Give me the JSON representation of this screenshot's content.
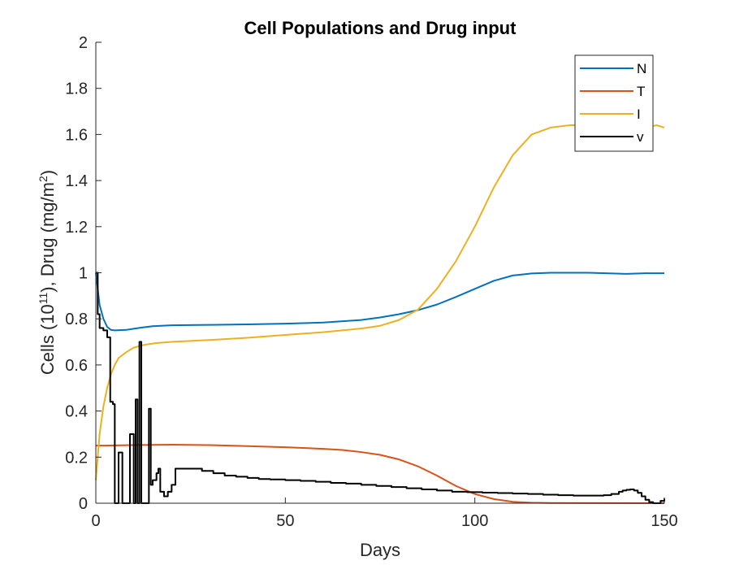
{
  "chart_data": {
    "type": "line",
    "title": "Cell Populations and Drug input",
    "xlabel": "Days",
    "ylabel": {
      "prefix": "Cells (10",
      "sup1": "11",
      "middle": "), Drug (mg/m",
      "sup2": "2",
      "suffix": ")"
    },
    "xlim": [
      0,
      150
    ],
    "ylim": [
      0,
      2
    ],
    "xticks": [
      0,
      50,
      100,
      150
    ],
    "yticks": [
      0,
      0.2,
      0.4,
      0.6,
      0.8,
      1,
      1.2,
      1.4,
      1.6,
      1.8,
      2
    ],
    "xtick_labels": [
      "0",
      "50",
      "100",
      "150"
    ],
    "ytick_labels": [
      "0",
      "0.2",
      "0.4",
      "0.6",
      "0.8",
      "1",
      "1.2",
      "1.4",
      "1.6",
      "1.8",
      "2"
    ],
    "grid": false,
    "legend_position": "top-right",
    "series": [
      {
        "name": "N",
        "color": "#0072BD",
        "step": false,
        "points": [
          [
            0,
            1.0
          ],
          [
            1,
            0.86
          ],
          [
            2,
            0.8
          ],
          [
            3,
            0.765
          ],
          [
            4,
            0.752
          ],
          [
            5,
            0.75
          ],
          [
            8,
            0.752
          ],
          [
            10,
            0.757
          ],
          [
            12,
            0.762
          ],
          [
            15,
            0.768
          ],
          [
            20,
            0.772
          ],
          [
            30,
            0.774
          ],
          [
            40,
            0.776
          ],
          [
            50,
            0.779
          ],
          [
            60,
            0.784
          ],
          [
            70,
            0.795
          ],
          [
            75,
            0.806
          ],
          [
            80,
            0.82
          ],
          [
            85,
            0.838
          ],
          [
            90,
            0.862
          ],
          [
            95,
            0.895
          ],
          [
            100,
            0.93
          ],
          [
            105,
            0.965
          ],
          [
            110,
            0.988
          ],
          [
            115,
            0.997
          ],
          [
            120,
            1.0
          ],
          [
            130,
            1.0
          ],
          [
            140,
            0.995
          ],
          [
            145,
            0.998
          ],
          [
            150,
            0.998
          ]
        ]
      },
      {
        "name": "T",
        "color": "#D95319",
        "step": false,
        "points": [
          [
            0,
            0.25
          ],
          [
            2,
            0.25
          ],
          [
            10,
            0.252
          ],
          [
            20,
            0.254
          ],
          [
            30,
            0.252
          ],
          [
            40,
            0.248
          ],
          [
            50,
            0.243
          ],
          [
            60,
            0.236
          ],
          [
            65,
            0.231
          ],
          [
            70,
            0.222
          ],
          [
            75,
            0.21
          ],
          [
            80,
            0.19
          ],
          [
            85,
            0.16
          ],
          [
            90,
            0.12
          ],
          [
            95,
            0.075
          ],
          [
            100,
            0.04
          ],
          [
            105,
            0.018
          ],
          [
            110,
            0.006
          ],
          [
            115,
            0.002
          ],
          [
            120,
            0.001
          ],
          [
            150,
            0.0
          ]
        ]
      },
      {
        "name": "I",
        "color": "#EDB120",
        "step": false,
        "points": [
          [
            0,
            0.1
          ],
          [
            0.5,
            0.2
          ],
          [
            1,
            0.3
          ],
          [
            2,
            0.42
          ],
          [
            3,
            0.5
          ],
          [
            4,
            0.56
          ],
          [
            5,
            0.6
          ],
          [
            6,
            0.63
          ],
          [
            8,
            0.655
          ],
          [
            10,
            0.675
          ],
          [
            13,
            0.688
          ],
          [
            16,
            0.695
          ],
          [
            20,
            0.7
          ],
          [
            30,
            0.708
          ],
          [
            40,
            0.718
          ],
          [
            50,
            0.73
          ],
          [
            60,
            0.742
          ],
          [
            70,
            0.758
          ],
          [
            75,
            0.77
          ],
          [
            80,
            0.795
          ],
          [
            85,
            0.84
          ],
          [
            90,
            0.93
          ],
          [
            95,
            1.05
          ],
          [
            100,
            1.2
          ],
          [
            105,
            1.37
          ],
          [
            110,
            1.51
          ],
          [
            115,
            1.6
          ],
          [
            120,
            1.63
          ],
          [
            125,
            1.64
          ],
          [
            130,
            1.64
          ],
          [
            140,
            1.64
          ],
          [
            145,
            1.63
          ],
          [
            148,
            1.64
          ],
          [
            150,
            1.63
          ]
        ]
      },
      {
        "name": "v",
        "color": "#000000",
        "step": true,
        "points": [
          [
            0,
            1.0
          ],
          [
            0.5,
            0.82
          ],
          [
            1,
            0.76
          ],
          [
            2,
            0.75
          ],
          [
            3,
            0.72
          ],
          [
            3.8,
            0.44
          ],
          [
            4.5,
            0.43
          ],
          [
            5,
            0.0
          ],
          [
            6,
            0.22
          ],
          [
            7,
            0.0
          ],
          [
            8,
            0.0
          ],
          [
            9,
            0.3
          ],
          [
            10,
            0.0
          ],
          [
            10.5,
            0.45
          ],
          [
            11,
            0.0
          ],
          [
            11.5,
            0.7
          ],
          [
            12,
            0.0
          ],
          [
            13,
            0.0
          ],
          [
            14,
            0.41
          ],
          [
            14.5,
            0.08
          ],
          [
            15,
            0.1
          ],
          [
            16,
            0.13
          ],
          [
            16.5,
            0.15
          ],
          [
            17,
            0.05
          ],
          [
            18,
            0.03
          ],
          [
            19,
            0.05
          ],
          [
            20,
            0.08
          ],
          [
            21,
            0.15
          ],
          [
            22,
            0.15
          ],
          [
            25,
            0.15
          ],
          [
            28,
            0.14
          ],
          [
            31,
            0.13
          ],
          [
            34,
            0.12
          ],
          [
            37,
            0.115
          ],
          [
            40,
            0.11
          ],
          [
            43,
            0.105
          ],
          [
            46,
            0.103
          ],
          [
            50,
            0.1
          ],
          [
            54,
            0.097
          ],
          [
            58,
            0.093
          ],
          [
            62,
            0.088
          ],
          [
            66,
            0.085
          ],
          [
            70,
            0.08
          ],
          [
            74,
            0.075
          ],
          [
            78,
            0.07
          ],
          [
            82,
            0.065
          ],
          [
            86,
            0.06
          ],
          [
            90,
            0.055
          ],
          [
            94,
            0.05
          ],
          [
            98,
            0.048
          ],
          [
            102,
            0.046
          ],
          [
            106,
            0.044
          ],
          [
            110,
            0.042
          ],
          [
            114,
            0.04
          ],
          [
            118,
            0.037
          ],
          [
            122,
            0.035
          ],
          [
            126,
            0.033
          ],
          [
            130,
            0.033
          ],
          [
            134,
            0.035
          ],
          [
            136,
            0.04
          ],
          [
            138,
            0.05
          ],
          [
            139,
            0.055
          ],
          [
            140,
            0.058
          ],
          [
            141,
            0.06
          ],
          [
            142,
            0.055
          ],
          [
            143,
            0.045
          ],
          [
            144,
            0.03
          ],
          [
            145,
            0.015
          ],
          [
            146,
            0.005
          ],
          [
            147,
            0.0
          ],
          [
            148,
            0.0
          ],
          [
            149,
            0.01
          ],
          [
            150,
            0.02
          ]
        ]
      }
    ]
  }
}
